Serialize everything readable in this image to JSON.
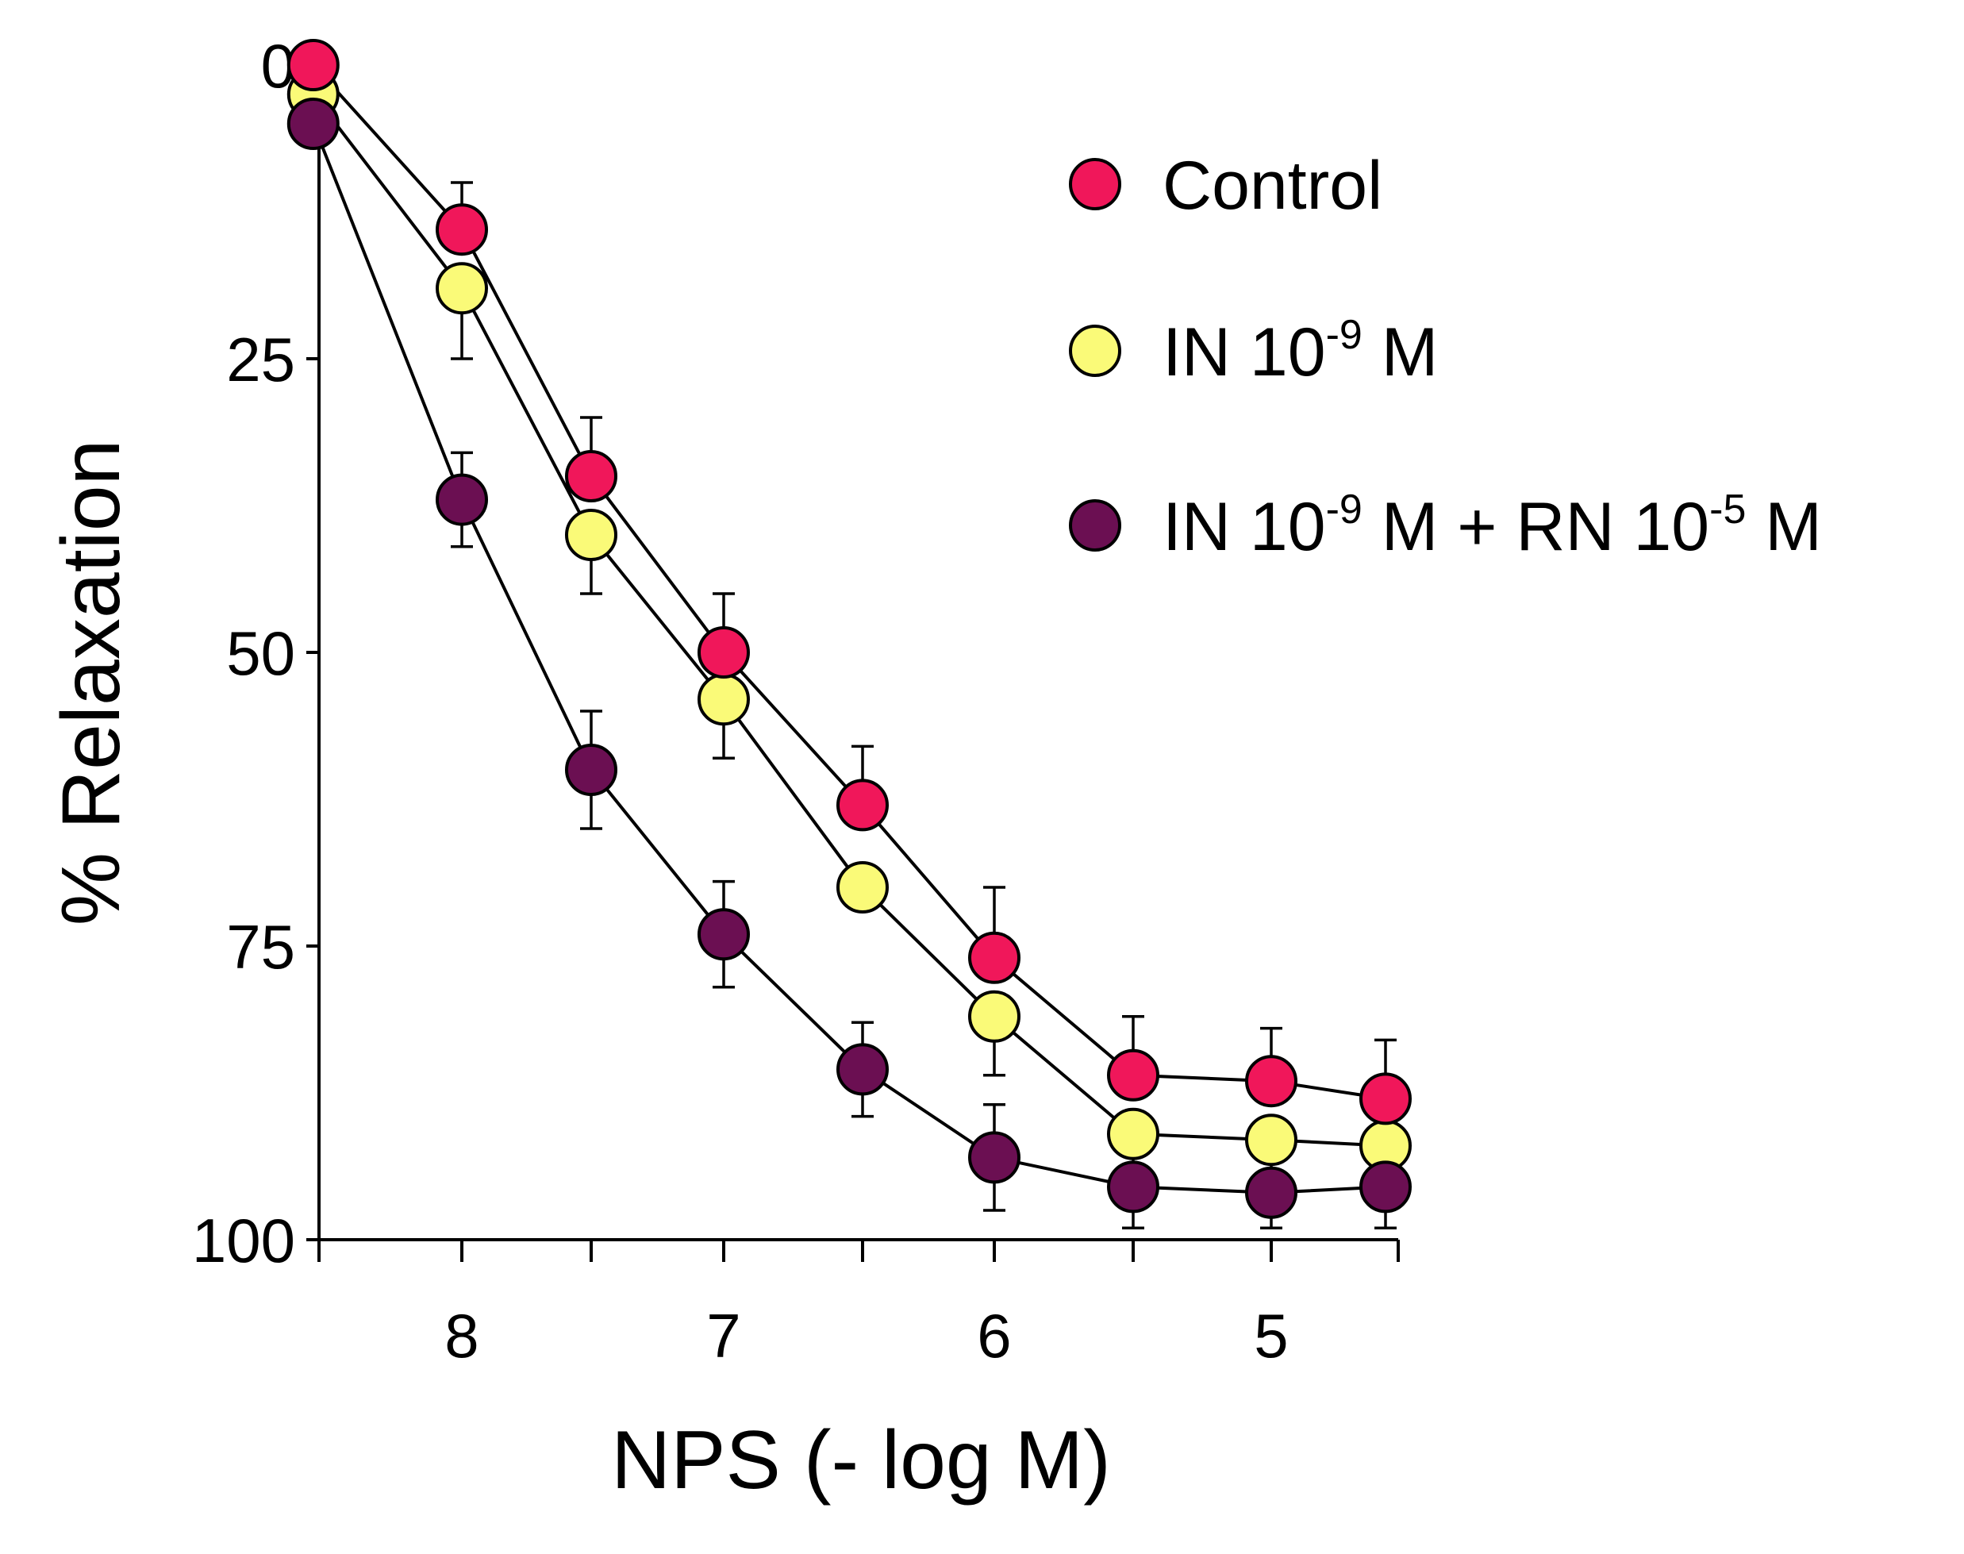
{
  "chart_data": {
    "type": "line",
    "xlabel": "NPS (- log M)",
    "ylabel": "% Relaxation",
    "xlim": [
      8.52,
      4.55
    ],
    "ylim": [
      0,
      100
    ],
    "y_inverted": true,
    "x_ticks": [
      8.5,
      8,
      7.5,
      7,
      6.5,
      6,
      5.5,
      5,
      4.5
    ],
    "x_tick_labels": [
      {
        "value": 8,
        "label": "8"
      },
      {
        "value": 7,
        "label": "7"
      },
      {
        "value": 6,
        "label": "6"
      },
      {
        "value": 5,
        "label": "5"
      }
    ],
    "y_ticks": [
      0,
      25,
      50,
      75,
      100
    ],
    "y_tick_labels": [
      "0",
      "25",
      "50",
      "75",
      "100"
    ],
    "x": [
      8.52,
      8.0,
      7.5,
      7.0,
      6.5,
      6.0,
      5.5,
      5.0,
      4.55
    ],
    "legend_position": "top-right",
    "series": [
      {
        "name": "Control",
        "legend_parts": [
          {
            "text": "Control"
          }
        ],
        "color": "#f0175a",
        "values": [
          0,
          14,
          35,
          50,
          63,
          76,
          86,
          86.5,
          88
        ],
        "errors": [
          0,
          4,
          5,
          5,
          5,
          6,
          5,
          4.5,
          5
        ]
      },
      {
        "name": "IN 10-9 M",
        "legend_parts": [
          {
            "text": "IN 10"
          },
          {
            "text": "-9",
            "sup": true
          },
          {
            "text": " M"
          }
        ],
        "color": "#fafa78",
        "values": [
          2.5,
          19,
          40,
          54,
          70,
          81,
          91,
          91.5,
          92
        ],
        "errors": [
          0,
          6,
          5,
          5,
          0,
          5,
          0,
          0,
          0
        ]
      },
      {
        "name": "IN 10-9 M + RN 10-5 M",
        "legend_parts": [
          {
            "text": "IN 10"
          },
          {
            "text": "-9",
            "sup": true
          },
          {
            "text": " M + RN 10"
          },
          {
            "text": "-5",
            "sup": true
          },
          {
            "text": " M"
          }
        ],
        "color": "#6b0f52",
        "values": [
          5,
          37,
          60,
          74,
          85.5,
          93,
          95.5,
          96,
          95.5
        ],
        "errors": [
          0,
          4,
          5,
          4.5,
          4,
          4.5,
          3.5,
          3,
          3.5
        ]
      }
    ]
  }
}
